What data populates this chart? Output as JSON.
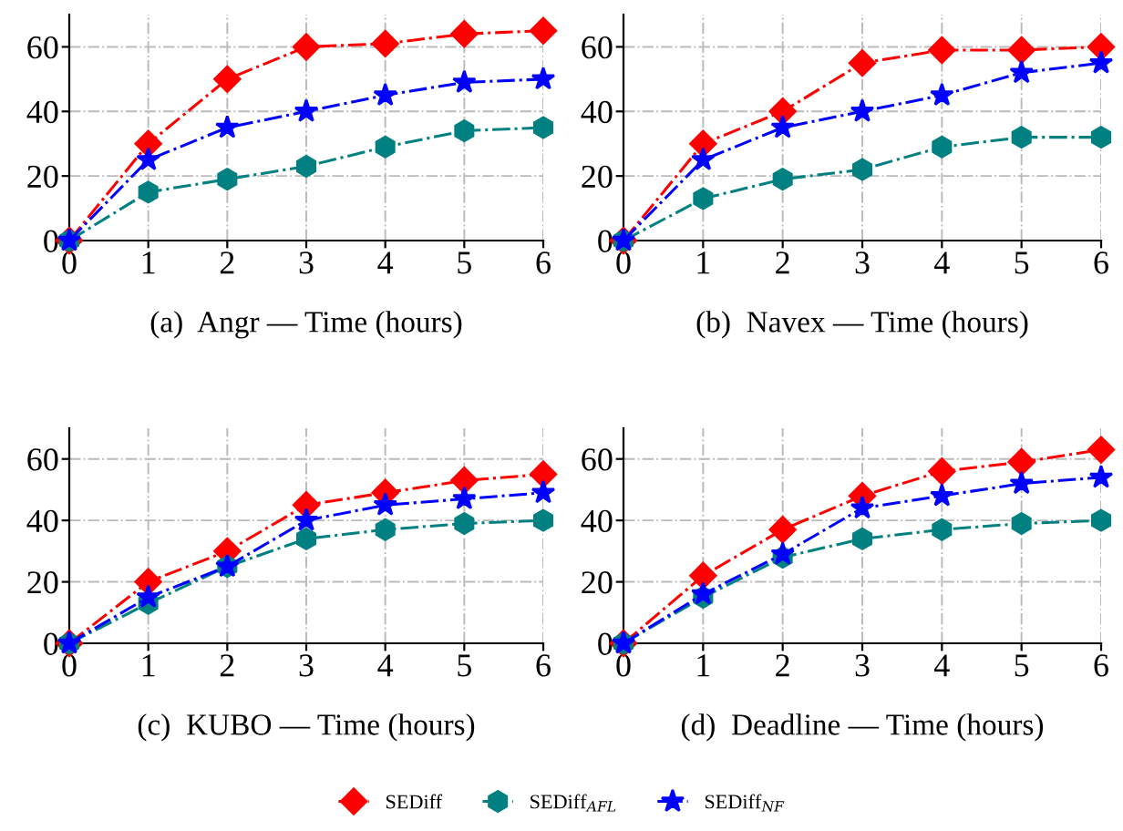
{
  "chart_data": [
    {
      "type": "line",
      "xlabel": "(a)  Angr — Time (hours)",
      "x": [
        0,
        1,
        2,
        3,
        4,
        5,
        6
      ],
      "xlim": [
        0,
        6
      ],
      "ylim": [
        0,
        70
      ],
      "xticks": [
        0,
        1,
        2,
        3,
        4,
        5,
        6
      ],
      "yticks": [
        0,
        20,
        40,
        60
      ],
      "grid": true,
      "line_style": "dashdot",
      "legend": "bottom",
      "series": [
        {
          "name": "SEDiff",
          "color": "#ff0000",
          "marker": "diamond",
          "values": [
            0,
            30,
            50,
            60,
            61,
            64,
            65
          ]
        },
        {
          "name": "SEDiff$_{AFL}$",
          "color": "#008080",
          "marker": "circle",
          "values": [
            0,
            15,
            19,
            23,
            29,
            34,
            35
          ]
        },
        {
          "name": "SEDiff$_{NF}$",
          "color": "#0000ff",
          "marker": "star",
          "values": [
            0,
            25,
            35,
            40,
            45,
            49,
            50
          ]
        }
      ]
    },
    {
      "type": "line",
      "xlabel": "(b)  Navex — Time (hours)",
      "x": [
        0,
        1,
        2,
        3,
        4,
        5,
        6
      ],
      "xlim": [
        0,
        6
      ],
      "ylim": [
        0,
        70
      ],
      "xticks": [
        0,
        1,
        2,
        3,
        4,
        5,
        6
      ],
      "yticks": [
        0,
        20,
        40,
        60
      ],
      "grid": true,
      "line_style": "dashdot",
      "legend": false,
      "series": [
        {
          "color": "#ff0000",
          "marker": "diamond",
          "values": [
            0,
            30,
            40,
            55,
            59,
            59,
            60
          ]
        },
        {
          "color": "#008080",
          "marker": "circle",
          "values": [
            0,
            13,
            19,
            22,
            29,
            32,
            32
          ]
        },
        {
          "color": "#0000ff",
          "marker": "star",
          "values": [
            0,
            25,
            35,
            40,
            45,
            52,
            55
          ]
        }
      ]
    },
    {
      "type": "line",
      "xlabel": "(c)  KUBO — Time (hours)",
      "x": [
        0,
        1,
        2,
        3,
        4,
        5,
        6
      ],
      "xlim": [
        0,
        6
      ],
      "ylim": [
        0,
        70
      ],
      "xticks": [
        0,
        1,
        2,
        3,
        4,
        5,
        6
      ],
      "yticks": [
        0,
        20,
        40,
        60
      ],
      "grid": true,
      "line_style": "dashdot",
      "legend": false,
      "series": [
        {
          "color": "#ff0000",
          "marker": "diamond",
          "values": [
            0,
            20,
            30,
            45,
            49,
            53,
            55
          ]
        },
        {
          "color": "#008080",
          "marker": "circle",
          "values": [
            0,
            13,
            25,
            34,
            37,
            39,
            40
          ]
        },
        {
          "color": "#0000ff",
          "marker": "star",
          "values": [
            0,
            15,
            25,
            40,
            45,
            47,
            49
          ]
        }
      ]
    },
    {
      "type": "line",
      "xlabel": "(d)  Deadline — Time (hours)",
      "x": [
        0,
        1,
        2,
        3,
        4,
        5,
        6
      ],
      "xlim": [
        0,
        6
      ],
      "ylim": [
        0,
        70
      ],
      "xticks": [
        0,
        1,
        2,
        3,
        4,
        5,
        6
      ],
      "yticks": [
        0,
        20,
        40,
        60
      ],
      "grid": true,
      "line_style": "dashdot",
      "series": [
        {
          "color": "#ff0000",
          "marker": "diamond",
          "values": [
            0,
            22,
            37,
            48,
            56,
            59,
            63
          ]
        },
        {
          "color": "#008080",
          "marker": "circle",
          "values": [
            0,
            15,
            28,
            34,
            37,
            39,
            40
          ]
        },
        {
          "color": "#0000ff",
          "marker": "star",
          "values": [
            0,
            16,
            29,
            44,
            48,
            52,
            54
          ]
        }
      ]
    }
  ]
}
